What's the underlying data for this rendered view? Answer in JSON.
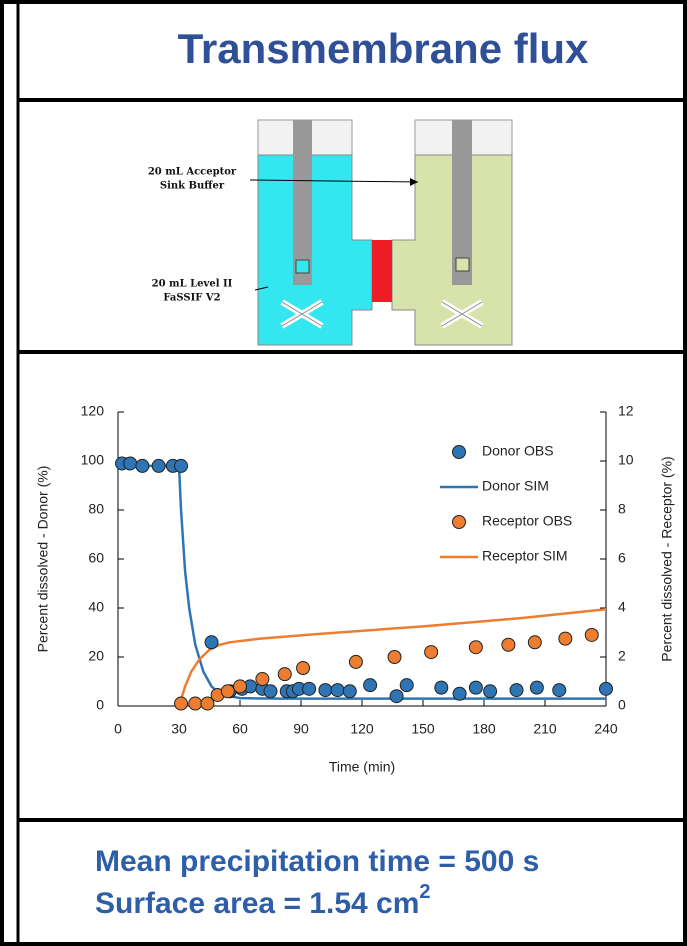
{
  "title": "Transmembrane flux",
  "diagram": {
    "labels": [
      "20 mL Acceptor",
      "Sink Buffer",
      "20 mL Level II",
      "FaSSIF V2"
    ]
  },
  "chart_data": {
    "type": "scatter",
    "xlabel": "Time (min)",
    "ylabel": "Percent dissolved - Donor (%)",
    "y2label": "Percent dissolved - Receptor (%)",
    "xlim": [
      0,
      240
    ],
    "xticks": [
      0,
      30,
      60,
      90,
      120,
      150,
      180,
      210,
      240
    ],
    "ylim": [
      0,
      120
    ],
    "yticks": [
      0,
      20,
      40,
      60,
      80,
      100,
      120
    ],
    "y2lim": [
      0,
      12
    ],
    "y2ticks": [
      0,
      2,
      4,
      6,
      8,
      10,
      12
    ],
    "legend": "right",
    "series": [
      {
        "name": "Donor OBS",
        "mode": "markers",
        "color": "#2e75b6",
        "axis": "y",
        "x": [
          2,
          6,
          12,
          20,
          27,
          31,
          46,
          55,
          61,
          65,
          71,
          75,
          83,
          86,
          89,
          94,
          102,
          108,
          114,
          124,
          137,
          142,
          159,
          168,
          176,
          183,
          196,
          206,
          217,
          240
        ],
        "values": [
          99,
          99,
          98,
          98,
          98,
          98,
          26,
          6,
          7,
          8,
          7,
          6,
          6,
          6,
          7,
          7,
          6.5,
          6.5,
          6,
          8.5,
          4,
          8.5,
          7.5,
          5,
          7.5,
          6,
          6.5,
          7.5,
          6.5,
          7
        ]
      },
      {
        "name": "Donor SIM",
        "mode": "line",
        "color": "#2e75b6",
        "axis": "y",
        "x": [
          0,
          30,
          31,
          33,
          35,
          38,
          42,
          46,
          50,
          55,
          60,
          80,
          240
        ],
        "values": [
          98,
          98,
          80,
          55,
          40,
          25,
          14,
          8,
          5,
          4,
          3.2,
          3,
          3
        ]
      },
      {
        "name": "Receptor OBS",
        "mode": "markers",
        "color": "#ed7d31",
        "axis": "y2",
        "x": [
          31,
          38,
          44,
          49,
          54,
          60,
          71,
          82,
          91,
          117,
          136,
          154,
          176,
          192,
          205,
          220,
          233
        ],
        "values": [
          0.1,
          0.1,
          0.1,
          0.45,
          0.6,
          0.8,
          1.1,
          1.3,
          1.55,
          1.8,
          2.0,
          2.2,
          2.4,
          2.5,
          2.6,
          2.75,
          2.9
        ]
      },
      {
        "name": "Receptor SIM",
        "mode": "line",
        "color": "#ed7d31",
        "axis": "y2",
        "x": [
          30,
          33,
          36,
          40,
          45,
          50,
          55,
          70,
          100,
          150,
          200,
          240
        ],
        "values": [
          0,
          0.8,
          1.4,
          1.9,
          2.3,
          2.5,
          2.6,
          2.75,
          2.95,
          3.25,
          3.6,
          3.95
        ]
      }
    ]
  },
  "footer": {
    "line1": "Mean precipitation time = 500 s",
    "line2": "Surface area = 1.54 cm",
    "line2_superscript": "2"
  }
}
